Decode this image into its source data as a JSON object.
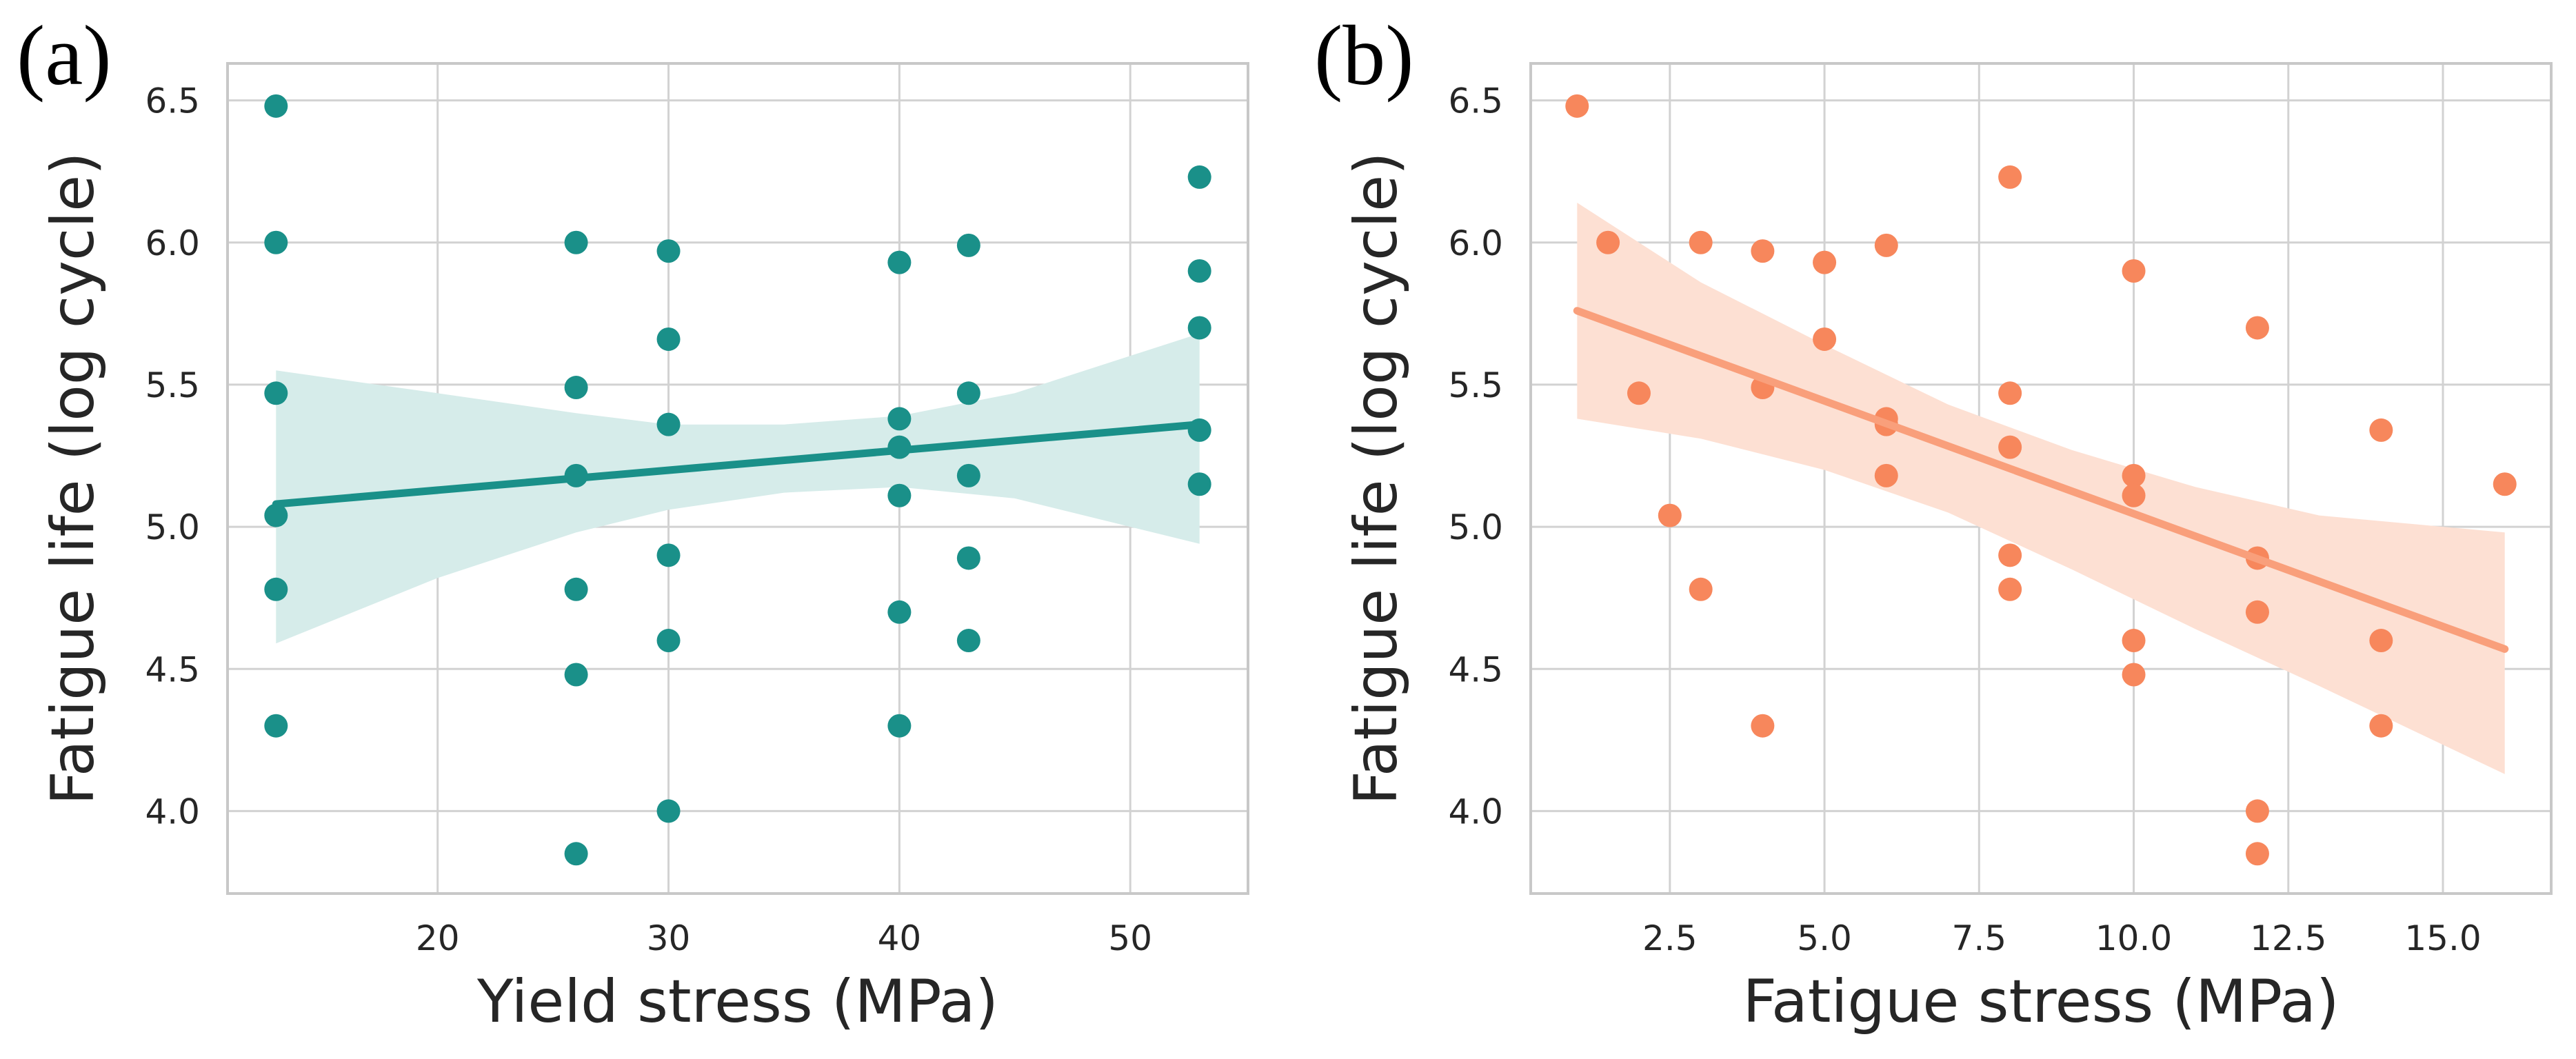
{
  "chart_data": [
    {
      "type": "scatter",
      "panel_label": "(a)",
      "title": "",
      "xlabel": "Yield stress (MPa)",
      "ylabel": "Fatigue life (log cycle)",
      "xlim": [
        10.9,
        55.1
      ],
      "ylim": [
        3.71,
        6.63
      ],
      "xticks": [
        20,
        30,
        40,
        50
      ],
      "xtick_labels": [
        "20",
        "30",
        "40",
        "50"
      ],
      "yticks": [
        4.0,
        4.5,
        5.0,
        5.5,
        6.0,
        6.5
      ],
      "ytick_labels": [
        "4.0",
        "4.5",
        "5.0",
        "5.5",
        "6.0",
        "6.5"
      ],
      "grid": true,
      "color": "#1a9089",
      "band_color": "#d6ecea",
      "points": [
        [
          13,
          6.48
        ],
        [
          13,
          6.0
        ],
        [
          13,
          5.47
        ],
        [
          13,
          5.04
        ],
        [
          13,
          4.78
        ],
        [
          13,
          4.3
        ],
        [
          26,
          6.0
        ],
        [
          26,
          5.49
        ],
        [
          26,
          5.18
        ],
        [
          26,
          4.78
        ],
        [
          26,
          4.48
        ],
        [
          26,
          3.85
        ],
        [
          30,
          5.97
        ],
        [
          30,
          5.66
        ],
        [
          30,
          5.36
        ],
        [
          30,
          4.9
        ],
        [
          30,
          4.6
        ],
        [
          30,
          4.0
        ],
        [
          40,
          5.93
        ],
        [
          40,
          5.38
        ],
        [
          40,
          5.28
        ],
        [
          40,
          5.11
        ],
        [
          40,
          4.7
        ],
        [
          40,
          4.3
        ],
        [
          43,
          5.99
        ],
        [
          43,
          5.47
        ],
        [
          43,
          5.18
        ],
        [
          43,
          4.89
        ],
        [
          43,
          4.6
        ],
        [
          53,
          6.23
        ],
        [
          53,
          5.9
        ],
        [
          53,
          5.7
        ],
        [
          53,
          5.34
        ],
        [
          53,
          5.15
        ]
      ],
      "fit_line": [
        [
          13,
          5.08
        ],
        [
          53,
          5.36
        ]
      ],
      "confidence_band": {
        "x": [
          13,
          20,
          26,
          30,
          35,
          40,
          45,
          53
        ],
        "lower": [
          4.59,
          4.82,
          4.98,
          5.06,
          5.12,
          5.14,
          5.1,
          4.94
        ],
        "upper": [
          5.55,
          5.47,
          5.4,
          5.36,
          5.36,
          5.39,
          5.47,
          5.68
        ]
      }
    },
    {
      "type": "scatter",
      "panel_label": "(b)",
      "title": "",
      "xlabel": "Fatigue stress (MPa)",
      "ylabel": "Fatigue life (log cycle)",
      "xlim": [
        0.25,
        16.75
      ],
      "ylim": [
        3.71,
        6.63
      ],
      "xticks": [
        2.5,
        5.0,
        7.5,
        10.0,
        12.5,
        15.0
      ],
      "xtick_labels": [
        "2.5",
        "5.0",
        "7.5",
        "10.0",
        "12.5",
        "15.0"
      ],
      "yticks": [
        4.0,
        4.5,
        5.0,
        5.5,
        6.0,
        6.5
      ],
      "ytick_labels": [
        "4.0",
        "4.5",
        "5.0",
        "5.5",
        "6.0",
        "6.5"
      ],
      "grid": true,
      "color": "#f7875c",
      "line_color": "#f99f7b",
      "band_color": "#fde0d3",
      "points": [
        [
          1,
          6.48
        ],
        [
          1.5,
          6.0
        ],
        [
          2,
          5.47
        ],
        [
          2.5,
          5.04
        ],
        [
          3,
          6.0
        ],
        [
          3,
          4.78
        ],
        [
          4,
          5.97
        ],
        [
          4,
          5.49
        ],
        [
          4,
          4.3
        ],
        [
          5,
          5.93
        ],
        [
          5,
          5.66
        ],
        [
          6,
          5.99
        ],
        [
          6,
          5.38
        ],
        [
          6,
          5.36
        ],
        [
          6,
          5.18
        ],
        [
          8,
          6.23
        ],
        [
          8,
          5.47
        ],
        [
          8,
          5.28
        ],
        [
          8,
          4.9
        ],
        [
          8,
          4.78
        ],
        [
          10,
          5.9
        ],
        [
          10,
          5.18
        ],
        [
          10,
          5.11
        ],
        [
          10,
          4.6
        ],
        [
          10,
          4.48
        ],
        [
          12,
          5.7
        ],
        [
          12,
          4.89
        ],
        [
          12,
          4.7
        ],
        [
          12,
          4.0
        ],
        [
          12,
          3.85
        ],
        [
          14,
          5.34
        ],
        [
          14,
          4.6
        ],
        [
          14,
          4.3
        ],
        [
          16,
          5.15
        ]
      ],
      "fit_line": [
        [
          1,
          5.76
        ],
        [
          16,
          4.57
        ]
      ],
      "confidence_band": {
        "x": [
          1,
          3,
          5,
          7,
          9,
          11,
          13,
          16
        ],
        "lower": [
          5.38,
          5.31,
          5.2,
          5.05,
          4.85,
          4.64,
          4.44,
          4.13
        ],
        "upper": [
          6.14,
          5.86,
          5.64,
          5.43,
          5.27,
          5.14,
          5.04,
          4.98
        ]
      }
    }
  ]
}
